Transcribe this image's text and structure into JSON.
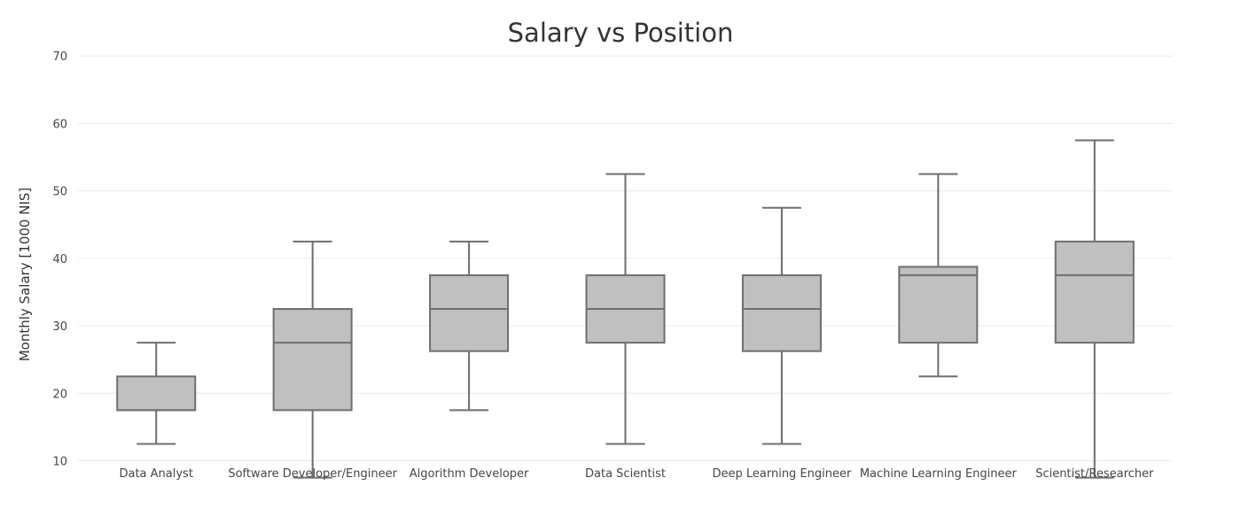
{
  "chart_data": {
    "type": "box",
    "title": "Salary vs Position",
    "ylabel": "Monthly Salary [1000 NIS]",
    "xlabel": "",
    "ylim": [
      6,
      72
    ],
    "yticks": [
      10,
      20,
      30,
      40,
      50,
      60,
      70
    ],
    "grid": true,
    "legend": "none",
    "box_fill": "#c0c0c0",
    "box_line": "#6e6e6e",
    "categories": [
      "Data Analyst",
      "Software Developer/Engineer",
      "Algorithm Developer",
      "Data Scientist",
      "Deep Learning Engineer",
      "Machine Learning Engineer",
      "Scientist/Researcher"
    ],
    "boxes": [
      {
        "min": 12.5,
        "q1": 17.5,
        "median": 17.5,
        "q3": 22.5,
        "max": 27.5
      },
      {
        "min": 7.5,
        "q1": 17.5,
        "median": 27.5,
        "q3": 32.5,
        "max": 42.5
      },
      {
        "min": 17.5,
        "q1": 26.25,
        "median": 32.5,
        "q3": 37.5,
        "max": 42.5
      },
      {
        "min": 12.5,
        "q1": 27.5,
        "median": 32.5,
        "q3": 37.5,
        "max": 52.5
      },
      {
        "min": 12.5,
        "q1": 26.25,
        "median": 32.5,
        "q3": 37.5,
        "max": 47.5
      },
      {
        "min": 22.5,
        "q1": 27.5,
        "median": 37.5,
        "q3": 38.75,
        "max": 52.5
      },
      {
        "min": 7.5,
        "q1": 27.5,
        "median": 37.5,
        "q3": 42.5,
        "max": 57.5
      }
    ]
  }
}
